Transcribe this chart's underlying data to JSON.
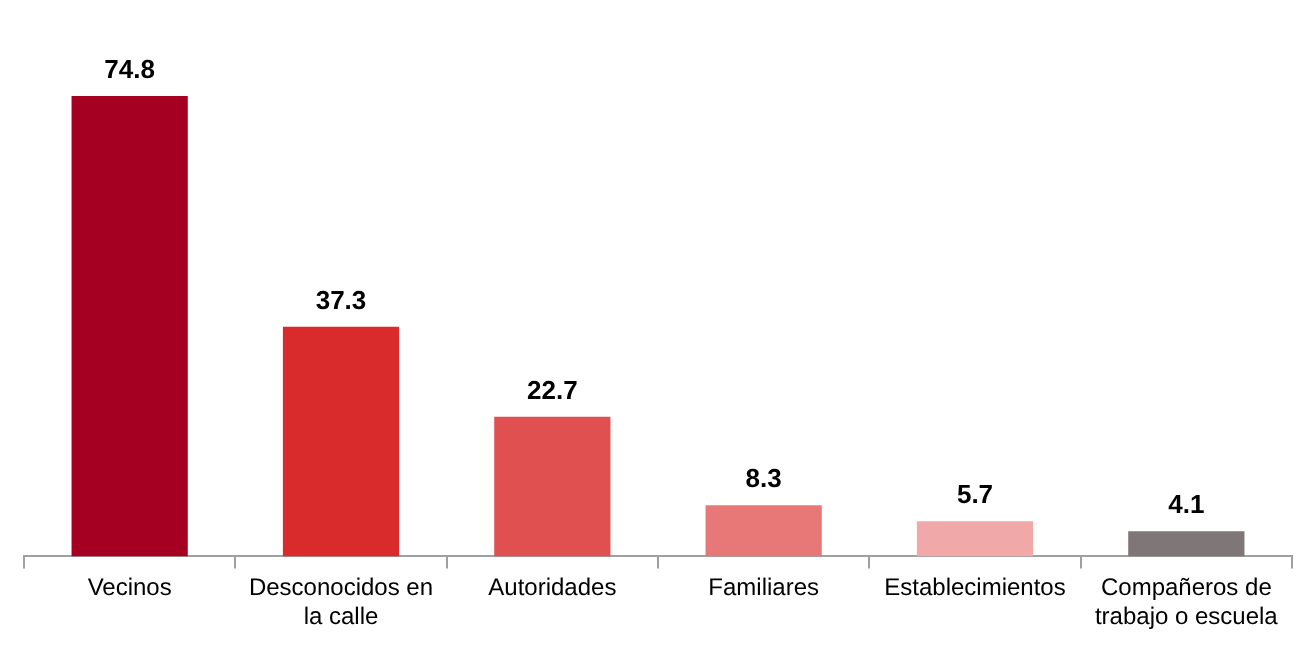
{
  "chart_data": {
    "type": "bar",
    "categories": [
      "Vecinos",
      "Desconocidos en la calle",
      "Autoridades",
      "Familiares",
      "Establecimientos",
      "Compañeros de trabajo o escuela"
    ],
    "values": [
      74.8,
      37.3,
      22.7,
      8.3,
      5.7,
      4.1
    ],
    "colors": [
      "#a50021",
      "#d92b2b",
      "#e05050",
      "#e87878",
      "#f0a8a8",
      "#7f7677"
    ],
    "data_labels": true,
    "grid": false,
    "legend": false
  }
}
